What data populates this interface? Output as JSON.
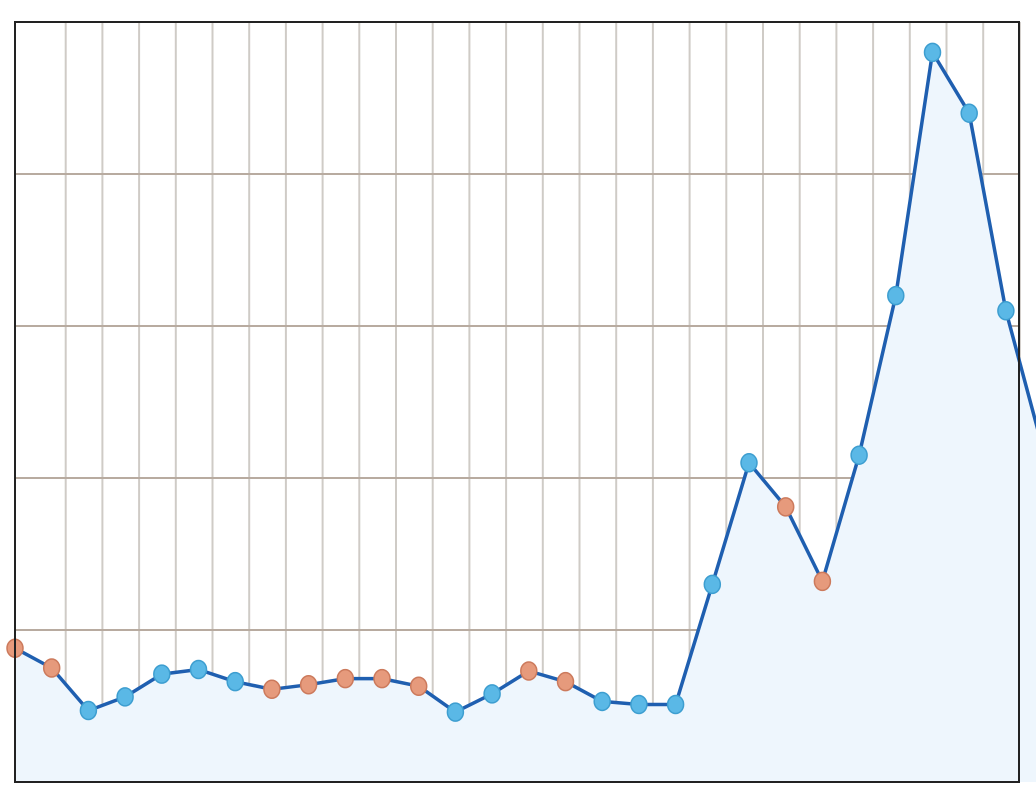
{
  "chart_data": {
    "type": "area",
    "title": "",
    "xlabel": "",
    "ylabel": "",
    "ylim": [
      0,
      5
    ],
    "grid": true,
    "x": [
      0,
      1,
      2,
      3,
      4,
      5,
      6,
      7,
      8,
      9,
      10,
      11,
      12,
      13,
      14,
      15,
      16,
      17,
      18,
      19,
      20,
      21,
      22,
      23,
      24,
      25,
      26,
      27,
      28
    ],
    "series": [
      {
        "values": [
          0.88,
          0.75,
          0.47,
          0.56,
          0.71,
          0.74,
          0.66,
          0.61,
          0.64,
          0.68,
          0.68,
          0.63,
          0.46,
          0.58,
          0.73,
          0.66,
          0.53,
          0.51,
          0.51,
          1.3,
          2.1,
          1.81,
          1.32,
          2.15,
          3.2,
          4.8,
          4.4,
          3.1,
          2.2
        ],
        "marker_kinds": [
          "orange",
          "orange",
          "blue",
          "blue",
          "blue",
          "blue",
          "blue",
          "orange",
          "orange",
          "orange",
          "orange",
          "orange",
          "blue",
          "blue",
          "orange",
          "orange",
          "blue",
          "blue",
          "blue",
          "blue",
          "blue",
          "orange",
          "orange",
          "blue",
          "blue",
          "blue",
          "blue",
          "blue",
          "blue"
        ]
      }
    ],
    "colors": {
      "line": "#1f5fb0",
      "fill": "#eef6fd",
      "marker_blue": "#5ab8e6",
      "marker_orange": "#e69a7c",
      "grid_vertical": "#cfcbc6",
      "grid_horizontal": "#b8aba0",
      "frame": "#222222"
    }
  }
}
